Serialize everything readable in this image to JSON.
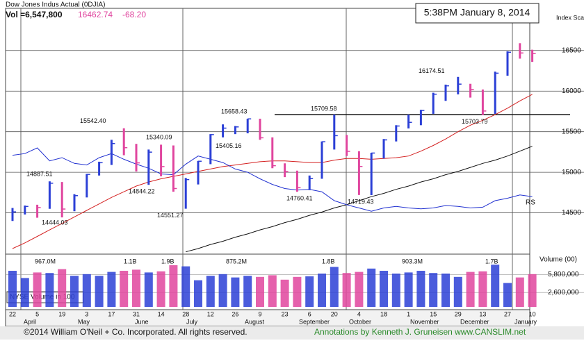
{
  "chart_data": {
    "type": "hlc",
    "title": "Dow Jones Indus Actual  (0DJIA)",
    "quote": {
      "volume": "Vol =6,547,800",
      "price": "16462.74",
      "change": "-68.20"
    },
    "timestamp": "5:38PM January 8, 2014",
    "y_axis_label": "Index Scale",
    "volume_axis_label": "Volume (00)",
    "volume_legend": "NYSE Volume in 100",
    "rs_label": "RS",
    "footer": {
      "copyright": "©2014 William O'Neil + Co. Incorporated. All rights reserved.",
      "annotations": "Annotations by Kenneth J. Gruneisen www.CANSLIM.net"
    },
    "categories": [
      "22",
      null,
      "5",
      null,
      "19",
      null,
      "3",
      null,
      "17",
      null,
      "31",
      null,
      "14",
      null,
      "28",
      null,
      "12",
      null,
      "26",
      null,
      "9",
      null,
      "23",
      null,
      "6",
      null,
      "20",
      null,
      "4",
      null,
      "18",
      null,
      "1",
      null,
      "15",
      null,
      "29",
      null,
      "13",
      null,
      "27",
      null,
      "10"
    ],
    "months": [
      "April",
      "May",
      "June",
      "July",
      "August",
      "September",
      "October",
      "November",
      "December",
      "January"
    ],
    "high": [
      14560,
      14590,
      14600,
      14888,
      14880,
      14730,
      14980,
      15130,
      15400,
      15542,
      15350,
      15280,
      15340,
      15330,
      14930,
      15140,
      15470,
      15590,
      15570,
      15659,
      15660,
      15430,
      15110,
      15020,
      14960,
      15380,
      15710,
      15460,
      15260,
      15240,
      15410,
      15580,
      15710,
      15770,
      15980,
      16080,
      16175,
      16090,
      16020,
      16240,
      16490,
      16590,
      16510
    ],
    "low": [
      14400,
      14480,
      14440,
      14550,
      14444,
      14520,
      14690,
      14960,
      15090,
      15210,
      15010,
      14845,
      14950,
      14760,
      14551,
      14850,
      15100,
      15430,
      15470,
      15480,
      15400,
      15050,
      14940,
      14760,
      14780,
      14920,
      15280,
      15200,
      14720,
      14719,
      15170,
      15380,
      15540,
      15580,
      15720,
      15880,
      15960,
      15920,
      15704,
      15720,
      16190,
      16400,
      16360
    ],
    "close": [
      14512,
      14579,
      14565,
      14865,
      14547,
      14712,
      14974,
      15118,
      15354,
      15303,
      15116,
      15248,
      15070,
      14800,
      14910,
      15136,
      15464,
      15544,
      15559,
      15658,
      15425,
      15081,
      15010,
      14810,
      14922,
      15376,
      15451,
      15258,
      15072,
      15237,
      15399,
      15570,
      15615,
      15762,
      15962,
      16065,
      16086,
      16020,
      15755,
      16221,
      16479,
      16470,
      16463
    ],
    "volume": [
      6500000,
      5200000,
      6200000,
      6100000,
      6800000,
      5600000,
      5900000,
      5600000,
      6300000,
      6500000,
      6700000,
      6200000,
      6400000,
      7500000,
      7300000,
      4800000,
      5600000,
      5900000,
      5300000,
      5600000,
      5400000,
      5700000,
      4900000,
      5400000,
      5500000,
      6000000,
      7200000,
      6100000,
      6300000,
      6900000,
      6500000,
      6000000,
      6200000,
      6500000,
      6100000,
      6000000,
      5400000,
      6300000,
      6400000,
      7600000,
      4300000,
      5300000,
      5900000
    ],
    "up_color": "#2b3fd6",
    "down_color": "#e0459e",
    "series": [
      {
        "color": "#d42020",
        "values": [
          14060,
          14130,
          14210,
          14290,
          14370,
          14450,
          14530,
          14610,
          14690,
          14760,
          14830,
          14880,
          14920,
          14950,
          14980,
          15010,
          15040,
          15070,
          15090,
          15110,
          15130,
          15140,
          15140,
          15130,
          15120,
          15120,
          15150,
          15170,
          15170,
          15160,
          15170,
          15180,
          15200,
          15260,
          15330,
          15410,
          15500,
          15580,
          15640,
          15710,
          15790,
          15880,
          15960
        ]
      },
      {
        "color": "#111111",
        "values": [
          null,
          null,
          null,
          null,
          null,
          null,
          null,
          null,
          null,
          null,
          null,
          null,
          null,
          null,
          14020,
          14060,
          14110,
          14150,
          14200,
          14240,
          14290,
          14330,
          14380,
          14420,
          14470,
          14510,
          14560,
          14600,
          14650,
          14700,
          14740,
          14790,
          14830,
          14880,
          14920,
          14970,
          15010,
          15060,
          15110,
          15150,
          15200,
          15260,
          15320
        ]
      },
      {
        "color": "#2030d0",
        "values": [
          15210,
          15230,
          15300,
          15140,
          15180,
          15110,
          15090,
          15180,
          15230,
          15160,
          15100,
          15050,
          14980,
          14970,
          15100,
          15200,
          15160,
          15120,
          15040,
          15000,
          14920,
          14850,
          14800,
          14780,
          14790,
          14760,
          14650,
          14600,
          14560,
          14520,
          14560,
          14580,
          14560,
          14550,
          14560,
          14590,
          14580,
          14560,
          14570,
          14650,
          14680,
          14720,
          14700
        ]
      }
    ],
    "annotations": [
      {
        "value": 14887.51,
        "label": "14887.51"
      },
      {
        "value": 14444.03,
        "label": "14444.03"
      },
      {
        "value": 15542.4,
        "label": "15542.40"
      },
      {
        "value": 15340.09,
        "label": "15340.09"
      },
      {
        "value": 14844.22,
        "label": "14844.22"
      },
      {
        "value": 14551.27,
        "label": "14551.27"
      },
      {
        "value": 15405.16,
        "label": "15405.16"
      },
      {
        "value": 15658.43,
        "label": "15658.43"
      },
      {
        "value": 14760.41,
        "label": "14760.41"
      },
      {
        "value": 15709.58,
        "label": "15709.58"
      },
      {
        "value": 14719.43,
        "label": "14719.43"
      },
      {
        "value": 16174.51,
        "label": "16174.51"
      },
      {
        "value": 15703.79,
        "label": "15703.79"
      }
    ],
    "volume_annotations": [
      "967.0M",
      "1.1B",
      "1.9B",
      "875.2M",
      "1.8B",
      "903.3M",
      "1.7B"
    ],
    "ylim": [
      14000,
      17020
    ],
    "yticks": [
      14500,
      15000,
      15500,
      16000,
      16500
    ],
    "volume_ylim": [
      0,
      9500000
    ],
    "volume_ticks": [
      {
        "value": 2600000,
        "label": "2,600,000"
      },
      {
        "value": 5800000,
        "label": "5,800,000"
      }
    ],
    "grid": true
  }
}
